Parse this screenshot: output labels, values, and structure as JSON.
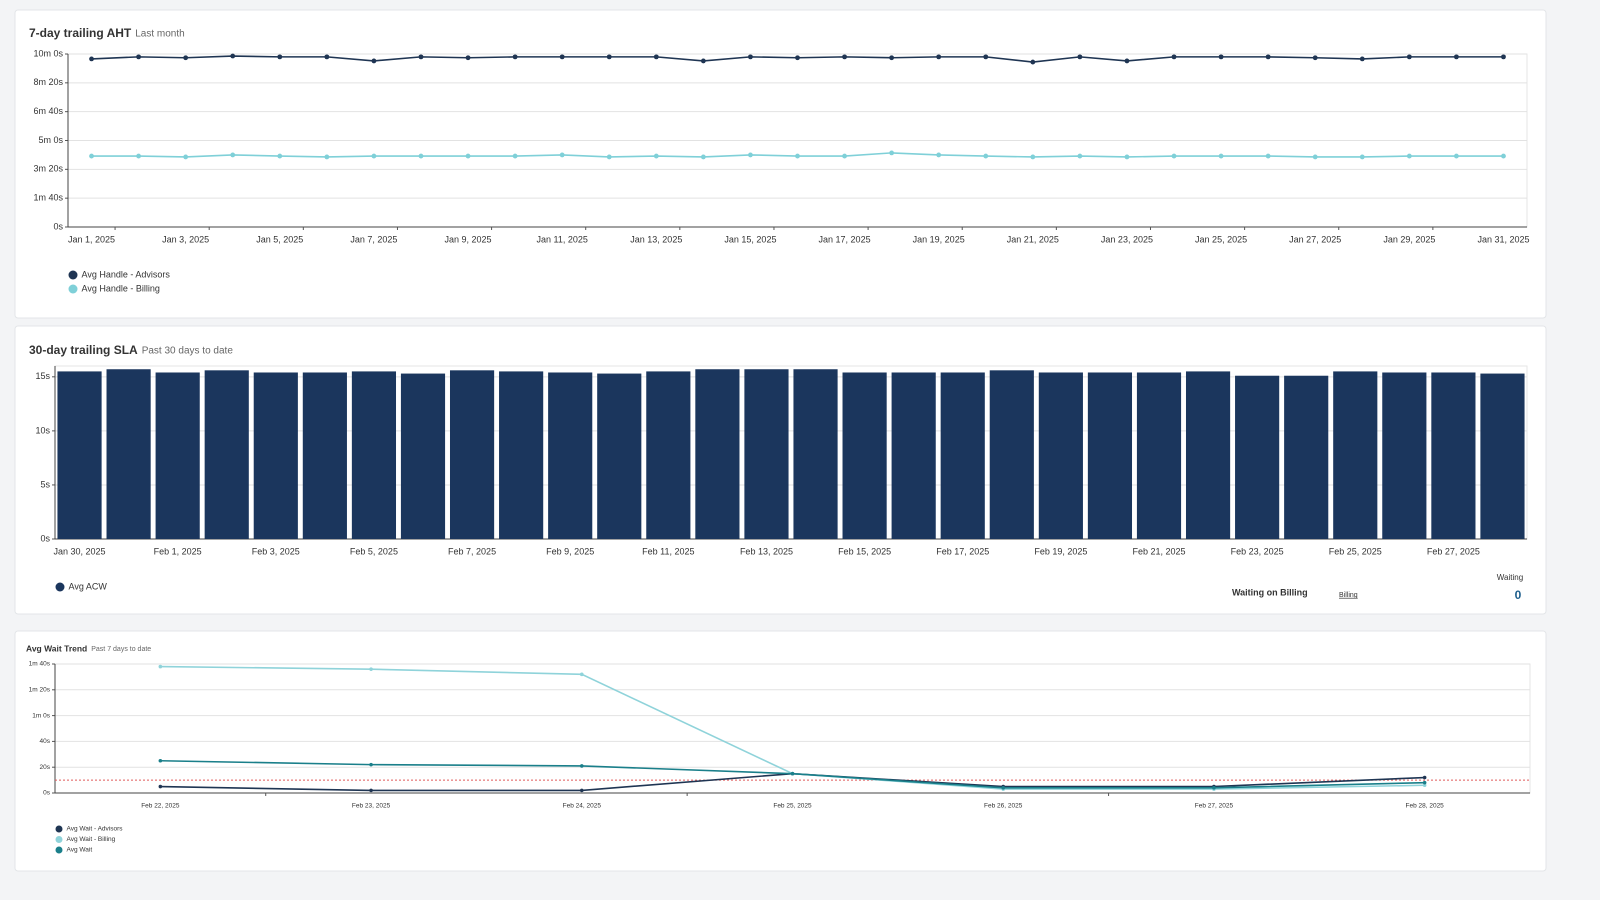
{
  "chart_data": [
    {
      "type": "line",
      "title": "7-day trailing AHT",
      "subtitle": "Last month",
      "categories": [
        "Jan 1, 2025",
        null,
        "Jan 3, 2025",
        null,
        "Jan 5, 2025",
        null,
        "Jan 7, 2025",
        null,
        "Jan 9, 2025",
        null,
        "Jan 11, 2025",
        null,
        "Jan 13, 2025",
        null,
        "Jan 15, 2025",
        null,
        "Jan 17, 2025",
        null,
        "Jan 19, 2025",
        null,
        "Jan 21, 2025",
        null,
        "Jan 23, 2025",
        null,
        "Jan 25, 2025",
        null,
        "Jan 27, 2025",
        null,
        "Jan 29, 2025",
        null,
        "Jan 31, 2025"
      ],
      "series": [
        {
          "name": "Avg Handle - Advisors",
          "color": "#1f3553",
          "values": [
            583,
            590,
            587,
            593,
            590,
            590,
            576,
            590,
            587,
            590,
            590,
            590,
            590,
            576,
            590,
            587,
            590,
            587,
            590,
            590,
            572,
            590,
            576,
            590,
            590,
            590,
            587,
            583,
            590,
            590,
            590
          ]
        },
        {
          "name": "Avg Handle - Billing",
          "color": "#7fd0d8",
          "values": [
            246,
            246,
            243,
            250,
            246,
            243,
            246,
            246,
            246,
            246,
            250,
            243,
            246,
            243,
            250,
            246,
            246,
            257,
            250,
            246,
            243,
            246,
            243,
            246,
            246,
            246,
            243,
            243,
            246,
            246,
            246
          ]
        }
      ],
      "ylim": [
        0,
        600
      ],
      "yticks": [
        {
          "value": 0,
          "label": "0s"
        },
        {
          "value": 100,
          "label": "1m 40s"
        },
        {
          "value": 200,
          "label": "3m 20s"
        },
        {
          "value": 300,
          "label": "5m 0s"
        },
        {
          "value": 400,
          "label": "6m 40s"
        },
        {
          "value": 500,
          "label": "8m 20s"
        },
        {
          "value": 600,
          "label": "10m 0s"
        }
      ],
      "grid": true
    },
    {
      "type": "bar",
      "title": "30-day trailing SLA",
      "subtitle": "Past 30 days to date",
      "categories": [
        "Jan 30, 2025",
        null,
        "Feb 1, 2025",
        null,
        "Feb 3, 2025",
        null,
        "Feb 5, 2025",
        null,
        "Feb 7, 2025",
        null,
        "Feb 9, 2025",
        null,
        "Feb 11, 2025",
        null,
        "Feb 13, 2025",
        null,
        "Feb 15, 2025",
        null,
        "Feb 17, 2025",
        null,
        "Feb 19, 2025",
        null,
        "Feb 21, 2025",
        null,
        "Feb 23, 2025",
        null,
        "Feb 25, 2025",
        null,
        "Feb 27, 2025",
        null
      ],
      "series": [
        {
          "name": "Avg ACW",
          "color": "#1b365d",
          "values": [
            15.5,
            15.7,
            15.4,
            15.6,
            15.4,
            15.4,
            15.5,
            15.3,
            15.6,
            15.5,
            15.4,
            15.3,
            15.5,
            15.7,
            15.7,
            15.7,
            15.4,
            15.4,
            15.4,
            15.6,
            15.4,
            15.4,
            15.4,
            15.5,
            15.1,
            15.1,
            15.5,
            15.4,
            15.4,
            15.3
          ]
        }
      ],
      "ylim": [
        0,
        16
      ],
      "yticks": [
        {
          "value": 0,
          "label": "0s"
        },
        {
          "value": 5,
          "label": "5s"
        },
        {
          "value": 10,
          "label": "10s"
        },
        {
          "value": 15,
          "label": "15s"
        }
      ],
      "grid": true
    },
    {
      "type": "line",
      "title": "Avg Wait Trend",
      "subtitle": "Past 7 days to date",
      "categories": [
        "Feb 22, 2025",
        "Feb 23, 2025",
        "Feb 24, 2025",
        "Feb 25, 2025",
        "Feb 26, 2025",
        "Feb 27, 2025",
        "Feb 28, 2025"
      ],
      "series": [
        {
          "name": "Avg Wait - Advisors",
          "color": "#1f3553",
          "values": [
            5,
            2,
            2,
            15,
            5,
            5,
            12
          ]
        },
        {
          "name": "Avg Wait - Billing",
          "color": "#8fd3da",
          "values": [
            98,
            96,
            92,
            15,
            3,
            3,
            6
          ]
        },
        {
          "name": "Avg Wait",
          "color": "#1a7f8a",
          "values": [
            25,
            22,
            21,
            15,
            4,
            4,
            8
          ]
        }
      ],
      "ylim": [
        0,
        100
      ],
      "yticks": [
        {
          "value": 0,
          "label": "0s"
        },
        {
          "value": 20,
          "label": "20s"
        },
        {
          "value": 40,
          "label": "40s"
        },
        {
          "value": 60,
          "label": "1m 0s"
        },
        {
          "value": 80,
          "label": "1m 20s"
        },
        {
          "value": 100,
          "label": "1m 40s"
        }
      ],
      "threshold": 10,
      "threshold_color": "#e05a5a",
      "grid": true
    }
  ],
  "widget": {
    "label": "Waiting",
    "title": "Waiting on Billing",
    "link": "Billing",
    "value": 0
  }
}
